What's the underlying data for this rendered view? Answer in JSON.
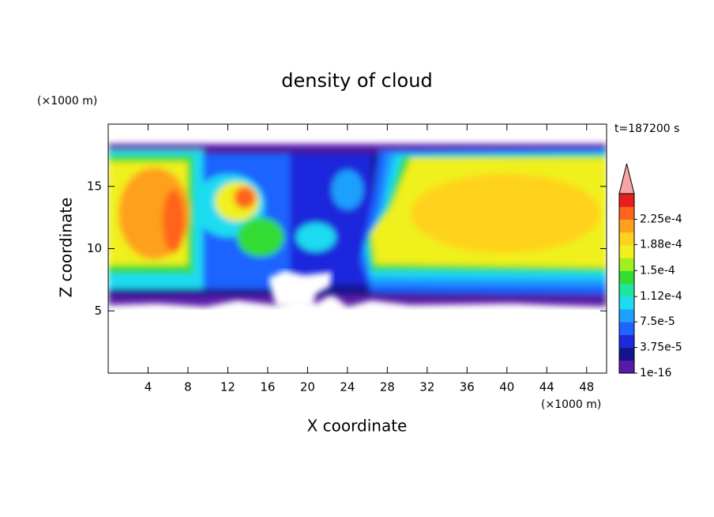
{
  "chart_data": {
    "type": "contour",
    "title": "density of cloud",
    "xlabel": "X coordinate",
    "ylabel": "Z coordinate",
    "x_unit": "(×1000 m)",
    "y_unit": "(×1000 m)",
    "annotation": "t=187200 s",
    "xlim": [
      0,
      50
    ],
    "xticks": [
      4,
      8,
      12,
      16,
      20,
      24,
      28,
      32,
      36,
      40,
      44,
      48
    ],
    "ylim": [
      0,
      20
    ],
    "yticks": [
      5,
      10,
      15
    ],
    "colorbar": {
      "clim": [
        1e-16,
        0.0002625
      ],
      "colors": [
        "#5a1aa8",
        "#14148c",
        "#1e28dc",
        "#1e64ff",
        "#1ea0ff",
        "#1edcf0",
        "#1ee6a0",
        "#32dc32",
        "#a0f01e",
        "#f0f01e",
        "#ffd21e",
        "#ffa01e",
        "#ff641e",
        "#e61e1e"
      ],
      "extend_color": "#f4a4a4",
      "ticks": [
        {
          "value": 1e-16,
          "label": "1e-16"
        },
        {
          "value": 3.75e-05,
          "label": "3.75e-5"
        },
        {
          "value": 7.5e-05,
          "label": "7.5e-5"
        },
        {
          "value": 0.000112,
          "label": "1.12e-4"
        },
        {
          "value": 0.00015,
          "label": "1.5e-4"
        },
        {
          "value": 0.000188,
          "label": "1.88e-4"
        },
        {
          "value": 0.000225,
          "label": "2.25e-4"
        }
      ]
    }
  }
}
